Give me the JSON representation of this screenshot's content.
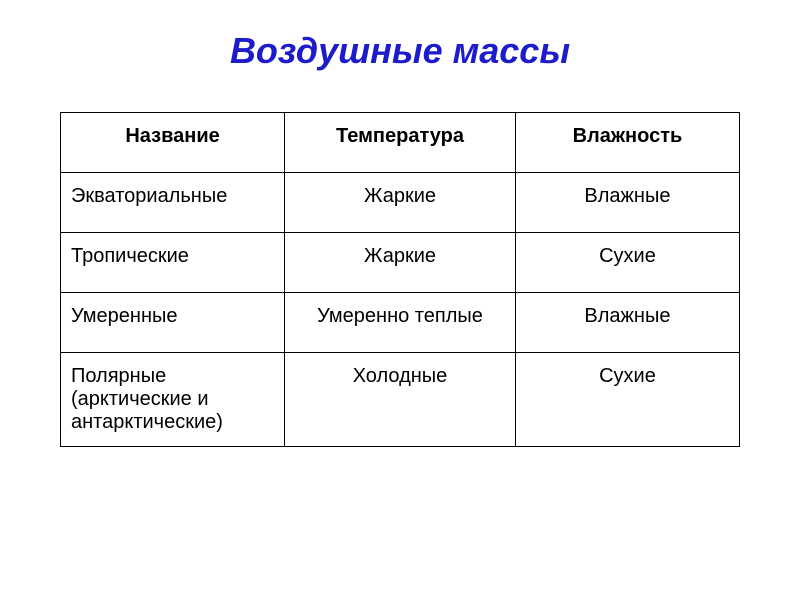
{
  "title": "Воздушные массы",
  "table": {
    "columns": [
      "Название",
      "Температура",
      "Влажность"
    ],
    "rows": [
      {
        "name": "Экваториальные",
        "temperature": "Жаркие",
        "humidity": "Влажные"
      },
      {
        "name": "Тропические",
        "temperature": "Жаркие",
        "humidity": "Сухие"
      },
      {
        "name": "Умеренные",
        "temperature": "Умеренно теплые",
        "humidity": "Влажные"
      },
      {
        "name": "Полярные (арктические и антарктические)",
        "temperature": "Холодные",
        "humidity": "Сухие"
      }
    ]
  },
  "styling": {
    "title_color": "#1c1ccc",
    "title_fontsize": 36,
    "title_style": "bold italic",
    "border_color": "#000000",
    "background_color": "#ffffff",
    "cell_fontsize": 20,
    "header_fontweight": "bold",
    "column_widths_pct": [
      33,
      34,
      33
    ],
    "column_alignment": [
      "left",
      "center",
      "center"
    ]
  }
}
